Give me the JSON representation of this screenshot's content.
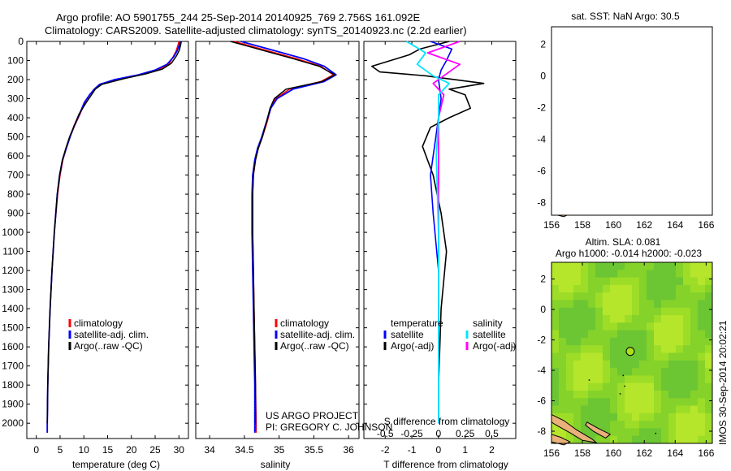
{
  "header": {
    "line1": "Argo profile: AO 5901755_244 25-Sep-2014 20140925_769 2.756S 161.092E",
    "line2": "Climatology: CARS2009. Satellite-adjusted climatology: synTS_20140923.nc (2.2d earlier)"
  },
  "colors": {
    "climatology": "#ff0000",
    "satellite": "#0000ff",
    "argo": "#000000",
    "sal_satellite": "#00e5ff",
    "sal_argo": "#ff00ff",
    "land": "#e9b07a"
  },
  "depth_ticks": [
    "0",
    "100",
    "200",
    "300",
    "400",
    "500",
    "600",
    "700",
    "800",
    "900",
    "1000",
    "1100",
    "1200",
    "1300",
    "1400",
    "1500",
    "1600",
    "1700",
    "1800",
    "1900",
    "2000"
  ],
  "temp_ticks": [
    "0",
    "5",
    "10",
    "15",
    "20",
    "25",
    "30"
  ],
  "sal_ticks": [
    "34",
    "34.5",
    "35",
    "35.5",
    "36"
  ],
  "diff_ticks_T": [
    "-2",
    "-1",
    "0",
    "1",
    "2"
  ],
  "diff_ticks_S": [
    "-0.5",
    "-0.25",
    "0",
    "0.25",
    "0.5"
  ],
  "temp_xlabel": "temperature (deg C)",
  "sal_xlabel": "salinity",
  "diff_xlabel": "T difference from climatology",
  "diff_s_label": "S difference from climatology",
  "legend": {
    "climatology": "climatology",
    "satellite": "satellite-adj. clim.",
    "argo": "Argo(..raw -QC)"
  },
  "diff_legend": {
    "temperature": "temperature",
    "salinity": "salinity",
    "t_sat": "satellite",
    "t_argo": "Argo(-adj)",
    "s_sat": "satellite",
    "s_argo": "Argo(-adj)"
  },
  "credits": {
    "project": "US ARGO PROJECT",
    "pi": "PI: GREGORY C. JOHNSON"
  },
  "map1": {
    "title": "sat. SST: NaN Argo: 30.5"
  },
  "map2": {
    "title1": "Altim. SLA: 0.081",
    "title2": "Argo h1000: -0.014 h2000: -0.023"
  },
  "map_xticks": [
    "156",
    "158",
    "160",
    "162",
    "164",
    "166"
  ],
  "map_yticks": [
    "2",
    "0",
    "-2",
    "-4",
    "-6",
    "-8"
  ],
  "float_position": {
    "lon": 161.092,
    "lat": -2.756
  },
  "stamp": "IMOS 30-Sep-2014 20:02:21",
  "chart_data": [
    {
      "type": "line",
      "ylabel": "",
      "xlabel": "temperature (deg C)",
      "xlim": [
        -2,
        32
      ],
      "ylim": [
        2080,
        0
      ],
      "series": [
        {
          "name": "climatology",
          "x": [
            30.0,
            29.8,
            29.4,
            28.8,
            27.9,
            25.5,
            21.8,
            17.0,
            13.5,
            12.2,
            11.2,
            10.2,
            9.2,
            8.1,
            7.1,
            6.3,
            5.6,
            5.0,
            4.5,
            3.8,
            3.3,
            2.9,
            2.6,
            2.4,
            2.3,
            2.3
          ],
          "depth": [
            0,
            20,
            50,
            80,
            120,
            150,
            175,
            200,
            225,
            250,
            280,
            320,
            380,
            440,
            500,
            560,
            620,
            700,
            800,
            1000,
            1200,
            1400,
            1600,
            1800,
            2000,
            2050
          ]
        },
        {
          "name": "satellite-adj. clim.",
          "x": [
            30.3,
            30.1,
            29.6,
            28.9,
            27.5,
            25.0,
            21.5,
            16.5,
            13.3,
            12.2,
            11.2,
            10.1,
            9.1,
            8.0,
            7.1,
            6.3,
            5.5,
            4.9,
            4.4,
            3.8,
            3.3,
            2.9,
            2.6,
            2.4,
            2.3,
            2.3
          ],
          "depth": [
            0,
            20,
            50,
            80,
            120,
            150,
            175,
            200,
            225,
            250,
            280,
            320,
            380,
            440,
            500,
            560,
            620,
            700,
            800,
            1000,
            1200,
            1400,
            1600,
            1800,
            2000,
            2050
          ]
        },
        {
          "name": "Argo(..raw -QC)",
          "x": [
            30.5,
            30.4,
            30.1,
            29.5,
            28.4,
            26.5,
            23.0,
            18.5,
            13.8,
            12.4,
            11.6,
            10.5,
            9.0,
            8.0,
            7.0,
            6.2,
            5.5,
            4.9,
            4.4,
            3.8,
            3.3,
            2.9,
            2.6,
            2.4,
            2.3
          ],
          "depth": [
            0,
            15,
            45,
            75,
            115,
            145,
            170,
            195,
            225,
            250,
            280,
            320,
            380,
            440,
            500,
            560,
            620,
            700,
            800,
            1000,
            1200,
            1400,
            1600,
            1800,
            2000
          ]
        }
      ]
    },
    {
      "type": "line",
      "xlabel": "salinity",
      "xlim": [
        33.8,
        36.15
      ],
      "ylim": [
        2080,
        0
      ],
      "series": [
        {
          "name": "climatology",
          "x": [
            34.35,
            34.55,
            34.85,
            35.25,
            35.6,
            35.78,
            35.6,
            35.15,
            34.95,
            34.88,
            34.83,
            34.76,
            34.7,
            34.66,
            34.63,
            34.62,
            34.62,
            34.63,
            34.64,
            34.65,
            34.66,
            34.67,
            34.67
          ],
          "depth": [
            0,
            20,
            50,
            90,
            130,
            175,
            210,
            250,
            300,
            350,
            420,
            500,
            560,
            620,
            700,
            800,
            1000,
            1200,
            1400,
            1600,
            1800,
            2000,
            2050
          ]
        },
        {
          "name": "satellite-adj. clim.",
          "x": [
            34.45,
            34.65,
            34.95,
            35.35,
            35.65,
            35.82,
            35.65,
            35.2,
            34.97,
            34.88,
            34.82,
            34.75,
            34.69,
            34.65,
            34.62,
            34.61,
            34.61,
            34.62,
            34.63,
            34.64,
            34.65,
            34.65,
            34.65
          ],
          "depth": [
            0,
            20,
            50,
            90,
            130,
            175,
            210,
            250,
            300,
            350,
            420,
            500,
            560,
            620,
            700,
            800,
            1000,
            1200,
            1400,
            1600,
            1800,
            2000,
            2050
          ]
        },
        {
          "name": "Argo(..raw -QC)",
          "x": [
            34.3,
            34.5,
            34.8,
            35.2,
            35.58,
            35.8,
            35.62,
            35.1,
            34.93,
            34.87,
            34.82,
            34.76,
            34.7,
            34.66,
            34.63,
            34.62,
            34.62,
            34.63,
            34.64,
            34.65,
            34.66,
            34.66
          ],
          "depth": [
            0,
            20,
            50,
            90,
            130,
            175,
            210,
            250,
            300,
            350,
            420,
            500,
            560,
            620,
            700,
            800,
            1000,
            1200,
            1400,
            1600,
            1800,
            2000
          ]
        }
      ]
    },
    {
      "type": "line",
      "xlabel": "T difference from climatology",
      "xlim": [
        -2.8,
        2.9
      ],
      "ylim": [
        2080,
        0
      ],
      "series": [
        {
          "name": "satellite",
          "x": [
            -0.3,
            0.5,
            0.3,
            0.1,
            0.0,
            0.1,
            0.0,
            -0.1,
            -0.2,
            -0.3,
            -0.2,
            0.0,
            0.0
          ],
          "depth": [
            0,
            40,
            100,
            150,
            200,
            300,
            400,
            500,
            600,
            700,
            900,
            1200,
            2000
          ]
        },
        {
          "name": "Argo(-adj)",
          "x": [
            0.4,
            -0.7,
            -1.1,
            -2.5,
            -2.2,
            -0.5,
            1.7,
            0.4,
            1.0,
            1.2,
            0.4,
            -0.3,
            -0.6,
            -0.2,
            0.1,
            0.3,
            0.1,
            0.05,
            0.0,
            0.0
          ],
          "depth": [
            0,
            40,
            70,
            130,
            160,
            180,
            220,
            250,
            280,
            350,
            400,
            450,
            550,
            700,
            900,
            1100,
            1400,
            1600,
            1800,
            2000
          ]
        }
      ]
    },
    {
      "type": "line",
      "xlabel": "S difference from climatology",
      "xlim": [
        -0.7,
        0.725
      ],
      "ylim": [
        2080,
        0
      ],
      "series": [
        {
          "name": "satellite",
          "x": [
            -0.3,
            -0.12,
            -0.2,
            -0.05,
            0.1,
            0.0,
            0.0,
            -0.02,
            0.0,
            0.0
          ],
          "depth": [
            0,
            60,
            120,
            180,
            220,
            280,
            400,
            600,
            1000,
            2000
          ]
        },
        {
          "name": "Argo(-adj)",
          "x": [
            0.2,
            -0.1,
            0.2,
            0.05,
            -0.05,
            0.05,
            0.0,
            0.0,
            0.0,
            0.0
          ],
          "depth": [
            0,
            60,
            120,
            180,
            220,
            280,
            400,
            600,
            1000,
            2000
          ]
        }
      ]
    }
  ]
}
